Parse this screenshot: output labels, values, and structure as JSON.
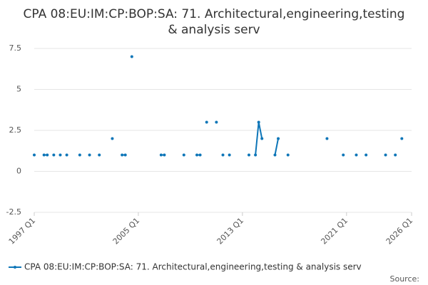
{
  "chart_data": {
    "type": "line",
    "title": "CPA 08:EU:IM:CP:BOP:SA: 71. Architectural,engineering,testing & analysis serv",
    "source_label": "Source:",
    "categories": [
      "1997 Q1",
      null,
      null,
      null,
      null,
      null,
      null,
      null,
      null,
      null,
      null,
      null,
      null,
      null,
      null,
      null,
      null,
      null,
      null,
      null,
      null,
      null,
      null,
      null,
      null,
      null,
      null,
      null,
      null,
      null,
      null,
      null,
      "2005 Q1",
      null,
      null,
      null,
      null,
      null,
      null,
      null,
      null,
      null,
      null,
      null,
      null,
      null,
      null,
      null,
      null,
      null,
      null,
      null,
      null,
      null,
      null,
      null,
      null,
      null,
      null,
      null,
      null,
      null,
      null,
      null,
      "2013 Q1",
      null,
      null,
      null,
      null,
      null,
      null,
      null,
      null,
      null,
      null,
      null,
      null,
      null,
      null,
      null,
      null,
      null,
      null,
      null,
      null,
      null,
      null,
      null,
      null,
      null,
      null,
      null,
      null,
      null,
      null,
      null,
      "2021 Q1",
      null,
      null,
      null,
      null,
      null,
      null,
      null,
      null,
      null,
      null,
      null,
      null,
      null,
      null,
      null,
      null,
      null,
      null,
      null,
      "2026 Q1"
    ],
    "series": [
      {
        "name": "CPA 08:EU:IM:CP:BOP:SA: 71. Architectural,engineering,testing & analysis serv",
        "color": "#0e76b8",
        "values": [
          1,
          null,
          null,
          1,
          1,
          null,
          1,
          null,
          1,
          null,
          1,
          null,
          null,
          null,
          1,
          null,
          null,
          1,
          null,
          null,
          1,
          null,
          null,
          null,
          2,
          null,
          null,
          1,
          1,
          null,
          7,
          null,
          null,
          null,
          null,
          null,
          null,
          null,
          null,
          1,
          1,
          null,
          null,
          null,
          null,
          null,
          1,
          null,
          null,
          null,
          1,
          1,
          null,
          3,
          null,
          null,
          3,
          null,
          1,
          null,
          1,
          null,
          null,
          null,
          null,
          null,
          1,
          null,
          1,
          3,
          2,
          null,
          null,
          null,
          1,
          2,
          null,
          null,
          1,
          null,
          null,
          null,
          null,
          null,
          null,
          null,
          null,
          null,
          null,
          null,
          2,
          null,
          null,
          null,
          null,
          1,
          null,
          null,
          null,
          1,
          null,
          null,
          1,
          null,
          null,
          null,
          null,
          null,
          1,
          null,
          null,
          1,
          null,
          2,
          null,
          null,
          null
        ]
      }
    ],
    "ylim": [
      -2.5,
      7.5
    ],
    "yticks": [
      -2.5,
      0,
      2.5,
      5,
      7.5
    ],
    "grid": true
  }
}
